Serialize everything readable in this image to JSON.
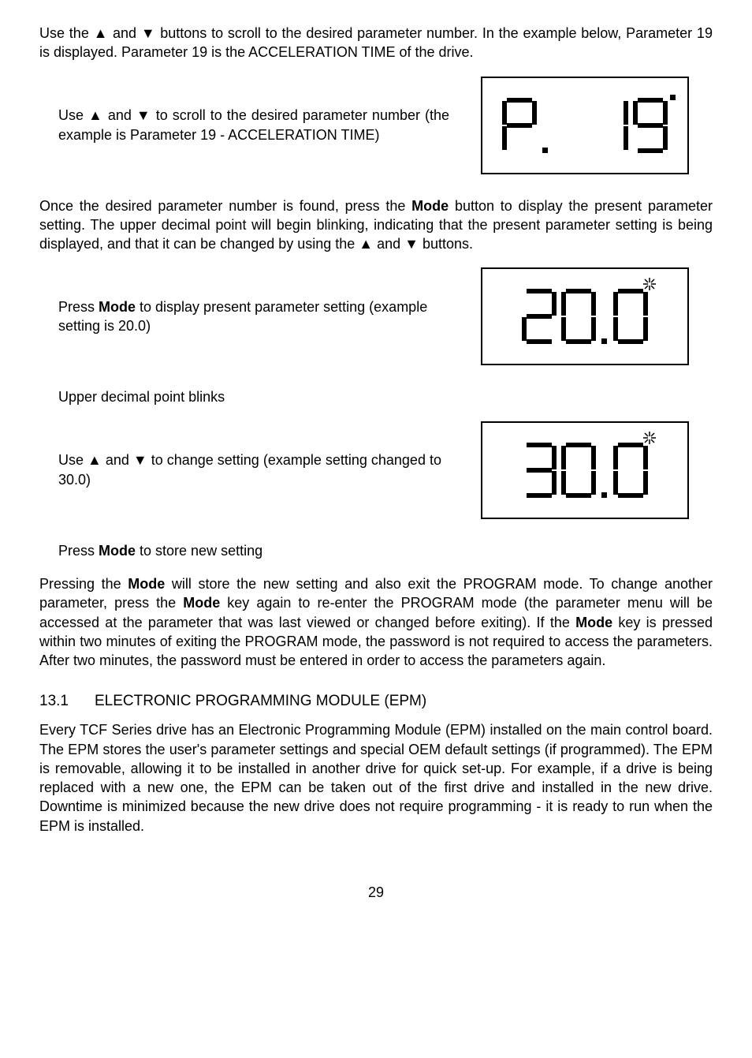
{
  "intro": {
    "p1_a": "Use the ",
    "p1_b": " and ",
    "p1_c": " buttons to scroll to the desired parameter number. In the example below, Parameter 19 is displayed. Parameter 19 is the ACCELERATION TIME of the drive."
  },
  "step1": {
    "a": "Use ",
    "b": " and ",
    "c": " to scroll to the desired parameter number (the example is Parameter 19 - ACCELERATION TIME)"
  },
  "once": {
    "a": "Once the desired parameter number is found, press the ",
    "mode": "Mode",
    "b": " button to display the present parameter setting. The upper decimal point will begin blinking, indicating that the present parameter setting is being displayed, and that it can be changed by using the ",
    "c": " and ",
    "d": " buttons."
  },
  "step2": {
    "a": "Press ",
    "mode": "Mode",
    "b": " to display present parameter setting (example setting is 20.0)"
  },
  "upper_blinks": "Upper decimal point blinks",
  "step3": {
    "a": "Use ",
    "b": " and ",
    "c": " to change setting (example setting changed to 30.0)"
  },
  "step4": {
    "a": "Press ",
    "mode": "Mode",
    "b": " to store new setting"
  },
  "pressing": {
    "a": "Pressing the ",
    "mode1": "Mode",
    "b": " will store the new setting and also exit the PROGRAM mode. To change another parameter, press the ",
    "mode2": "Mode",
    "c": " key again to re-enter the PROGRAM mode (the parameter menu will be accessed at the parameter that was last viewed or changed before exiting). If the ",
    "mode3": "Mode",
    "d": " key is pressed within two minutes of exiting the PROGRAM mode, the password is not required to access the parameters. After two minutes, the password must be entered in order to access the parameters again."
  },
  "heading": {
    "num": "13.1",
    "title": "ELECTRONIC PROGRAMMING MODULE (EPM)"
  },
  "epm_para": "Every TCF Series drive has an Electronic Programming Module (EPM) installed on the main control board. The EPM stores the user's parameter settings and special OEM default settings (if programmed). The EPM is removable, allowing it to be installed in another drive for quick set-up. For example, if a drive is being replaced with a new one, the EPM can be taken out of the first drive and installed in the new drive. Downtime is minimized because the new drive does not require programming - it is ready to run when the EPM is installed.",
  "page_number": "29",
  "glyphs": {
    "up": "▲",
    "down": "▼"
  },
  "displays": {
    "d1": {
      "digits": [
        "P",
        ".",
        "blank",
        "1",
        "9"
      ],
      "upper_dp_digit_index": 3,
      "upper_dp_blink": false
    },
    "d2": {
      "digits": [
        "2",
        "0",
        ".",
        "0"
      ],
      "upper_dp_digit_index": 2,
      "upper_dp_blink": true
    },
    "d3": {
      "digits": [
        "3",
        "0",
        ".",
        "0"
      ],
      "upper_dp_digit_index": 2,
      "upper_dp_blink": true
    }
  },
  "segment_map": {
    "0": "abcdef",
    "1": "bc",
    "2": "abged",
    "3": "abgcd",
    "9": "abcfgd",
    "P": "abefg",
    "blank": ""
  }
}
